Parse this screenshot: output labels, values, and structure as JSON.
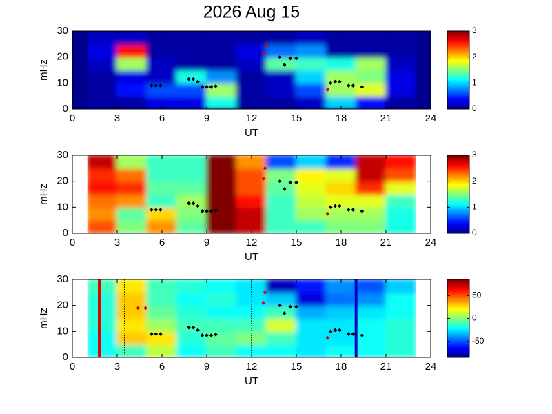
{
  "chart_data": [
    {
      "type": "heatmap",
      "title": "2026 Aug 15",
      "xlabel": "UT",
      "ylabel": "mHz",
      "xlim": [
        0,
        24
      ],
      "xticks": [
        0,
        3,
        6,
        9,
        12,
        15,
        18,
        21,
        24
      ],
      "ylim": [
        0,
        30
      ],
      "yticks": [
        0,
        10,
        20,
        30
      ],
      "xbins": [
        1,
        3,
        5,
        7,
        9,
        11,
        13,
        15,
        17,
        19,
        21,
        23
      ],
      "ybins": [
        0,
        5,
        10,
        15,
        20,
        25,
        30
      ],
      "z": [
        [
          0.1,
          0.1,
          0.3,
          0.3,
          1.2,
          0.1,
          0.1,
          0.2,
          1.0,
          0.4,
          0.1
        ],
        [
          0.1,
          0.4,
          0.6,
          0.6,
          1.6,
          0.1,
          0.2,
          0.6,
          1.6,
          1.8,
          0.3
        ],
        [
          0.1,
          0.3,
          0.2,
          1.2,
          0.8,
          0.1,
          0.2,
          1.0,
          1.6,
          1.5,
          0.3
        ],
        [
          0.2,
          1.6,
          0.2,
          0.1,
          0.1,
          0.2,
          1.4,
          1.3,
          1.2,
          1.6,
          0.2
        ],
        [
          0.3,
          2.6,
          0.1,
          0.1,
          0.1,
          0.3,
          0.7,
          0.8,
          0.1,
          0.1,
          0.1
        ],
        [
          0.2,
          0.2,
          0.1,
          0.1,
          0.1,
          0.1,
          0.1,
          0.2,
          0.1,
          0.1,
          0.1
        ]
      ],
      "background": "#00008f",
      "clim": [
        0,
        3
      ],
      "cticks": [
        0,
        1,
        2,
        3
      ],
      "markers": [
        {
          "color": "#000000",
          "x": [
            5.3,
            5.6,
            5.9,
            7.8,
            8.1,
            8.4,
            8.7,
            9.0,
            9.3,
            9.6,
            13.9,
            14.2,
            14.6,
            15.0,
            17.3,
            17.6,
            17.9,
            18.5,
            18.8,
            19.4
          ],
          "y": [
            9,
            9,
            9,
            11.5,
            11.5,
            10.5,
            8.5,
            8.5,
            8.5,
            8.8,
            20,
            17,
            19.5,
            19.5,
            10,
            10.5,
            10.5,
            9,
            9,
            8.5
          ]
        },
        {
          "color": "#e00000",
          "x": [
            12.8,
            13.0,
            17.1
          ],
          "y": [
            21.5,
            24.5,
            7.5
          ]
        }
      ]
    },
    {
      "type": "heatmap",
      "xlabel": "UT",
      "ylabel": "mHz",
      "xlim": [
        0,
        24
      ],
      "xticks": [
        0,
        3,
        6,
        9,
        12,
        15,
        18,
        21,
        24
      ],
      "ylim": [
        0,
        30
      ],
      "yticks": [
        0,
        10,
        20,
        30
      ],
      "xbins": [
        1,
        3,
        5,
        7,
        9,
        11,
        13,
        15,
        17,
        19,
        21,
        23
      ],
      "ybins": [
        0,
        5,
        10,
        15,
        20,
        25,
        30
      ],
      "z": [
        [
          2.4,
          1.5,
          2.2,
          1.4,
          3.0,
          2.8,
          1.3,
          1.3,
          1.5,
          1.5,
          1.2
        ],
        [
          2.2,
          1.4,
          2.0,
          1.5,
          3.0,
          2.8,
          1.3,
          1.6,
          1.6,
          1.6,
          1.2
        ],
        [
          2.3,
          2.2,
          1.3,
          1.6,
          3.0,
          2.6,
          1.3,
          1.7,
          1.8,
          1.8,
          1.3
        ],
        [
          2.6,
          2.5,
          1.4,
          1.4,
          3.0,
          2.4,
          1.4,
          1.8,
          2.0,
          2.5,
          1.8
        ],
        [
          2.5,
          2.3,
          1.3,
          1.3,
          3.0,
          2.4,
          1.5,
          1.9,
          1.8,
          2.8,
          2.4
        ],
        [
          2.8,
          1.6,
          1.3,
          1.3,
          3.0,
          2.2,
          0.6,
          1.0,
          0.5,
          2.8,
          2.6
        ]
      ],
      "clim": [
        0,
        3
      ],
      "cticks": [
        0,
        1,
        2,
        3
      ],
      "markers": [
        {
          "color": "#000000",
          "x": [
            5.3,
            5.6,
            5.9,
            7.8,
            8.1,
            8.4,
            8.7,
            9.0,
            9.3,
            9.6,
            13.9,
            14.2,
            14.6,
            15.0,
            17.3,
            17.6,
            17.9,
            18.5,
            18.8,
            19.4
          ],
          "y": [
            9,
            9,
            9,
            11.5,
            11.5,
            10.5,
            8.5,
            8.5,
            8.5,
            8.8,
            20,
            17,
            19.5,
            19.5,
            10,
            10.5,
            10.5,
            9,
            9,
            8.5
          ]
        },
        {
          "color": "#e00000",
          "x": [
            12.8,
            12.9,
            17.1
          ],
          "y": [
            21,
            25,
            7.5
          ]
        }
      ]
    },
    {
      "type": "heatmap",
      "xlabel": "UT",
      "ylabel": "mHz",
      "xlim": [
        0,
        24
      ],
      "xticks": [
        0,
        3,
        6,
        9,
        12,
        15,
        18,
        21,
        24
      ],
      "ylim": [
        0,
        30
      ],
      "yticks": [
        0,
        10,
        20,
        30
      ],
      "xbins": [
        1,
        3,
        5,
        7,
        9,
        11,
        13,
        15,
        17,
        19,
        21,
        23
      ],
      "ybins": [
        0,
        5,
        10,
        15,
        20,
        25,
        30
      ],
      "z": [
        [
          -20,
          -10,
          10,
          -20,
          -10,
          -20,
          -20,
          -25,
          -20,
          -20,
          -15
        ],
        [
          -20,
          30,
          25,
          -15,
          -5,
          0,
          -10,
          -25,
          -25,
          -20,
          -15
        ],
        [
          -15,
          25,
          5,
          -10,
          -10,
          -10,
          15,
          -25,
          -25,
          -20,
          -15
        ],
        [
          -15,
          30,
          -5,
          -15,
          -20,
          -20,
          -10,
          -35,
          -30,
          -25,
          -20
        ],
        [
          -15,
          30,
          -10,
          -20,
          -15,
          -25,
          -30,
          -70,
          -45,
          -40,
          -20
        ],
        [
          -10,
          25,
          -10,
          -15,
          -20,
          -25,
          -75,
          -60,
          -40,
          -50,
          -30
        ]
      ],
      "clim": [
        -85,
        85
      ],
      "cticks": [
        -50,
        0,
        50
      ],
      "vlines": [
        {
          "x": 1.8,
          "color": "#e00000",
          "style": "solid"
        },
        {
          "x": 3.5,
          "color": "#000000",
          "style": "dotted"
        },
        {
          "x": 12,
          "color": "#000000",
          "style": "dotted"
        },
        {
          "x": 19,
          "color": "#0000c0",
          "style": "solid"
        }
      ],
      "markers": [
        {
          "color": "#000000",
          "x": [
            5.3,
            5.6,
            5.9,
            7.8,
            8.1,
            8.4,
            8.7,
            9.0,
            9.3,
            9.6,
            13.9,
            14.2,
            14.6,
            15.0,
            17.3,
            17.6,
            17.9,
            18.5,
            18.8,
            19.4
          ],
          "y": [
            9,
            9,
            9,
            11.5,
            11.5,
            10.5,
            8.5,
            8.5,
            8.5,
            8.8,
            20,
            17,
            19.5,
            19.5,
            10,
            10.5,
            10.5,
            9,
            9,
            8.5
          ]
        },
        {
          "color": "#e00000",
          "x": [
            4.4,
            4.9,
            12.8,
            12.9,
            17.1
          ],
          "y": [
            19,
            19,
            21,
            25,
            7.5
          ]
        }
      ]
    }
  ]
}
